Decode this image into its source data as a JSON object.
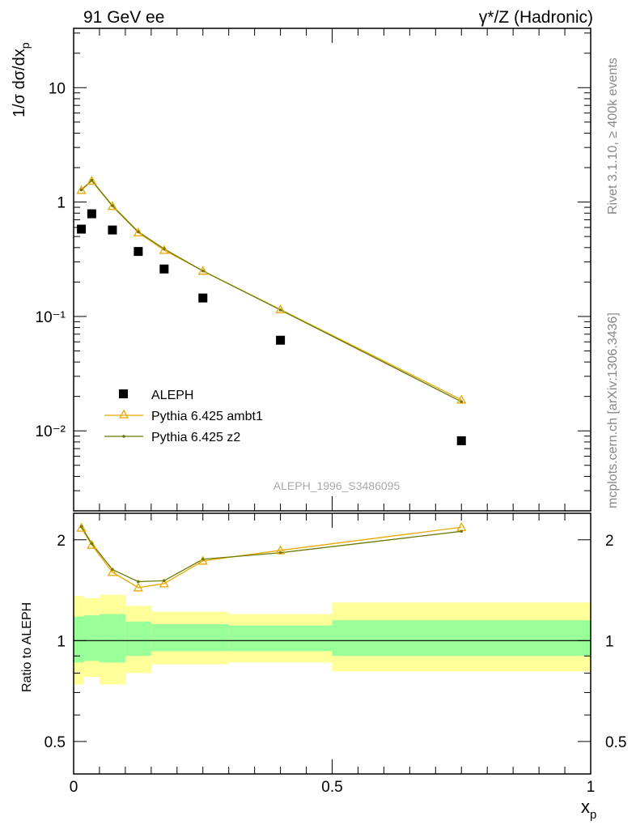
{
  "header": {
    "left": "91 GeV ee",
    "right": "γ*/Z (Hadronic)"
  },
  "side_text": {
    "top": "Rivet 3.1.10, ≥ 400k events",
    "bottom": "mcplots.cern.ch [arXiv:1306.3436]"
  },
  "watermark": "ALEPH_1996_S3486095",
  "colors": {
    "data": "#000000",
    "ambt1": "#e8a800",
    "z2": "#6b7a00",
    "band_outer": "#ffff99",
    "band_inner": "#99ff99"
  },
  "chart_data": [
    {
      "type": "scatter",
      "panel": "main",
      "ylabel": "1/σ dσ/dx",
      "ylabel_sub": "p",
      "yscale": "log",
      "xlim": [
        0,
        1
      ],
      "ylim": [
        0.002,
        33
      ],
      "y_tick_labels": [
        "10⁻²",
        "10⁻¹",
        "1",
        "10"
      ],
      "legend_position": "lower-left",
      "x": [
        0.015,
        0.035,
        0.075,
        0.125,
        0.175,
        0.25,
        0.4,
        0.75
      ],
      "series": [
        {
          "name": "ALEPH",
          "marker": "square",
          "values": [
            0.58,
            0.79,
            0.57,
            0.37,
            0.26,
            0.145,
            0.062,
            0.0082
          ]
        },
        {
          "name": "Pythia 6.425 ambt1",
          "marker": "triangle",
          "values": [
            1.27,
            1.53,
            0.92,
            0.54,
            0.38,
            0.25,
            0.115,
            0.0187
          ]
        },
        {
          "name": "Pythia 6.425 z2",
          "marker": "dot",
          "values": [
            1.28,
            1.55,
            0.93,
            0.55,
            0.39,
            0.25,
            0.114,
            0.018
          ]
        }
      ]
    },
    {
      "type": "line",
      "panel": "ratio",
      "ylabel": "Ratio to ALEPH",
      "yscale": "log",
      "xlabel": "x",
      "xlabel_sub": "p",
      "xlim": [
        0,
        1
      ],
      "ylim": [
        0.4,
        2.4
      ],
      "y_ticks": [
        0.5,
        1,
        2
      ],
      "y_tick_labels": [
        "0.5",
        "1",
        "2"
      ],
      "x_ticks": [
        0,
        0.5,
        1
      ],
      "x_tick_labels": [
        "0",
        "0.5",
        "1"
      ],
      "x": [
        0.015,
        0.035,
        0.075,
        0.125,
        0.175,
        0.25,
        0.4,
        0.75
      ],
      "series": [
        {
          "name": "Pythia 6.425 ambt1",
          "values": [
            2.17,
            1.93,
            1.6,
            1.44,
            1.48,
            1.73,
            1.86,
            2.18
          ]
        },
        {
          "name": "Pythia 6.425 z2",
          "values": [
            2.19,
            1.95,
            1.63,
            1.5,
            1.51,
            1.75,
            1.83,
            2.12
          ]
        }
      ],
      "bands": {
        "edges": [
          0,
          0.02,
          0.05,
          0.1,
          0.15,
          0.3,
          0.5,
          1.0
        ],
        "outer": [
          [
            0.74,
            1.36
          ],
          [
            0.78,
            1.34
          ],
          [
            0.74,
            1.37
          ],
          [
            0.8,
            1.27
          ],
          [
            0.85,
            1.22
          ],
          [
            0.86,
            1.2
          ],
          [
            0.81,
            1.3
          ]
        ],
        "inner": [
          [
            0.86,
            1.18
          ],
          [
            0.87,
            1.19
          ],
          [
            0.86,
            1.2
          ],
          [
            0.9,
            1.14
          ],
          [
            0.93,
            1.12
          ],
          [
            0.93,
            1.11
          ],
          [
            0.9,
            1.15
          ]
        ]
      }
    }
  ]
}
